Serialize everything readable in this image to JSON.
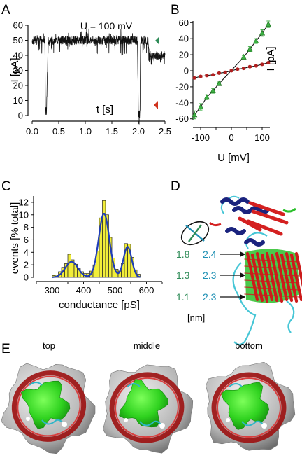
{
  "panels": {
    "A": {
      "letter": "A",
      "annotation": "U = 100 mV",
      "xlabel": "t [s]",
      "ylabel": "I [pA]",
      "xticks": [
        "0.0",
        "0.5",
        "1.0",
        "1.5",
        "2.0",
        "2.5"
      ],
      "yticks": [
        "0",
        "10",
        "20",
        "30",
        "40",
        "50",
        "60"
      ],
      "marker_colors": {
        "low": "#d0341e",
        "high": "#2e8b57"
      }
    },
    "B": {
      "letter": "B",
      "xlabel": "U [mV]",
      "ylabel": "I [pA]",
      "xticks": [
        "-100",
        "0",
        "100"
      ],
      "yticks": [
        "-60",
        "-40",
        "-20",
        "0",
        "20",
        "40",
        "60"
      ]
    },
    "C": {
      "letter": "C",
      "xlabel": "conductance [pS]",
      "ylabel": "events [% total]",
      "xticks": [
        "300",
        "400",
        "500",
        "600"
      ],
      "yticks": [
        "0",
        "2",
        "4",
        "6",
        "8",
        "10",
        "12"
      ]
    },
    "D": {
      "letter": "D",
      "rows": [
        {
          "a": "1.8",
          "b": "2.4"
        },
        {
          "a": "1.3",
          "b": "2.3"
        },
        {
          "a": "1.1",
          "b": "2.3"
        }
      ],
      "unit": "[nm]",
      "colors": {
        "a": "#2e8b57",
        "b": "#1e90b4"
      }
    },
    "E": {
      "letter": "E",
      "views": [
        "top",
        "middle",
        "bottom"
      ]
    }
  },
  "chart_data": [
    {
      "panel": "A",
      "type": "line",
      "title": "U = 100 mV",
      "xlabel": "t [s]",
      "ylabel": "I [pA]",
      "xlim": [
        0,
        2.5
      ],
      "ylim": [
        0,
        60
      ],
      "series": [
        {
          "x": [
            0.0,
            0.24,
            0.25,
            0.27,
            0.3,
            0.31,
            1.98,
            2.0,
            2.03,
            2.04,
            2.18,
            2.2,
            2.5
          ],
          "y": [
            50,
            50,
            3,
            3,
            50,
            50,
            50,
            1,
            1,
            50,
            50,
            40,
            40
          ]
        }
      ]
    },
    {
      "panel": "B",
      "type": "scatter",
      "xlabel": "U [mV]",
      "ylabel": "I [pA]",
      "xlim": [
        -125,
        125
      ],
      "ylim": [
        -62,
        62
      ],
      "series": [
        {
          "color": "#3cb043",
          "x": [
            -120,
            -100,
            -80,
            -60,
            -40,
            40,
            60,
            80,
            100,
            120
          ],
          "y": [
            -55,
            -45,
            -33,
            -25,
            -16,
            17,
            27,
            37,
            47,
            58
          ],
          "err": [
            5,
            4,
            3,
            3,
            2,
            2,
            3,
            3,
            4,
            4
          ]
        },
        {
          "color": "#b02020",
          "x": [
            -120,
            -100,
            -80,
            -60,
            -40,
            -20,
            0,
            20,
            40,
            60,
            80,
            100,
            120
          ],
          "y": [
            -9,
            -7,
            -6,
            -5,
            -3,
            -2,
            0,
            2,
            3,
            5,
            6,
            8,
            10
          ],
          "err": [
            1,
            1,
            1,
            1,
            1,
            1,
            1,
            1,
            1,
            1,
            1,
            1,
            1
          ]
        }
      ]
    },
    {
      "panel": "C",
      "type": "bar",
      "xlabel": "conductance [pS]",
      "ylabel": "events [% total]",
      "xlim": [
        250,
        650
      ],
      "ylim": [
        0,
        13
      ],
      "bin_width": 10,
      "bins": [
        [
          300,
          0.3
        ],
        [
          310,
          0.4
        ],
        [
          320,
          0.9
        ],
        [
          330,
          1.6
        ],
        [
          340,
          2.2
        ],
        [
          350,
          3.7
        ],
        [
          360,
          2.8
        ],
        [
          370,
          2.1
        ],
        [
          380,
          1.4
        ],
        [
          390,
          0.9
        ],
        [
          400,
          0.6
        ],
        [
          410,
          0.6
        ],
        [
          420,
          1.0
        ],
        [
          430,
          2.0
        ],
        [
          440,
          4.2
        ],
        [
          450,
          9.5
        ],
        [
          460,
          12.3
        ],
        [
          470,
          10.0
        ],
        [
          480,
          6.4
        ],
        [
          490,
          3.1
        ],
        [
          500,
          1.3
        ],
        [
          510,
          1.0
        ],
        [
          520,
          2.2
        ],
        [
          530,
          5.4
        ],
        [
          540,
          5.3
        ],
        [
          550,
          3.2
        ],
        [
          560,
          1.2
        ],
        [
          570,
          0.5
        ]
      ],
      "fit": {
        "color": "#1f3db8",
        "components": [
          {
            "mean": 362,
            "sd": 20,
            "amp": 2.5
          },
          {
            "mean": 465,
            "sd": 17,
            "amp": 10.2
          },
          {
            "mean": 540,
            "sd": 13,
            "amp": 4.9
          }
        ]
      }
    }
  ]
}
